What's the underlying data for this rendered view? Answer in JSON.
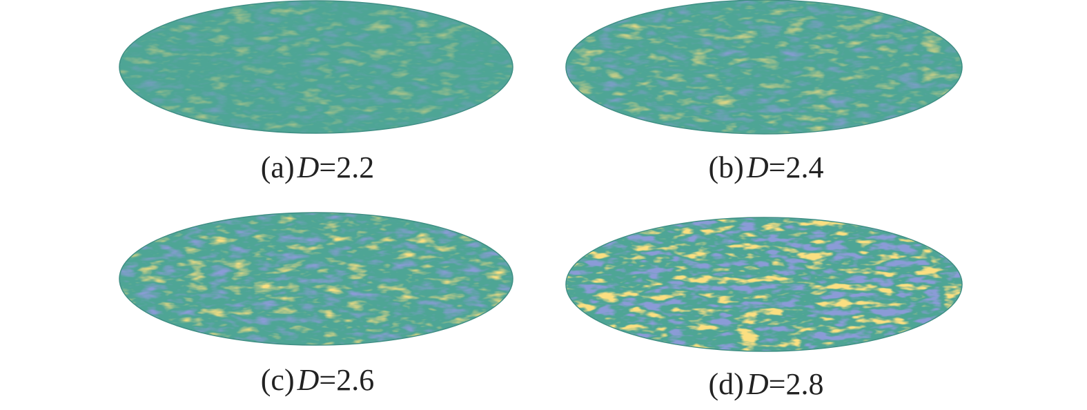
{
  "panels": [
    {
      "label": "(a)",
      "symbol": "D",
      "rest": "=2.2"
    },
    {
      "label": "(b)",
      "symbol": "D",
      "rest": "=2.4"
    },
    {
      "label": "(c)",
      "symbol": "D",
      "rest": "=2.6"
    },
    {
      "label": "(d)",
      "symbol": "D",
      "rest": "=2.8"
    }
  ]
}
